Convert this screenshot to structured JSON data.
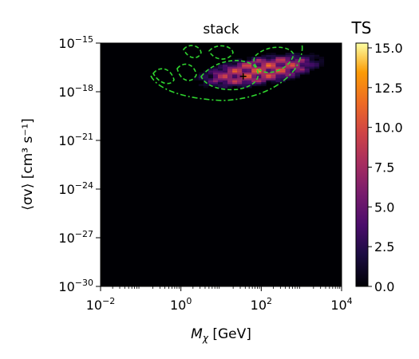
{
  "chart_data": {
    "type": "heatmap",
    "title": "stack",
    "xlabel": "M",
    "xlabel_sub": "χ",
    "xlabel_unit": " [GeV]",
    "ylabel": "⟨σv⟩ [cm³ s⁻¹]",
    "x_scale": "log",
    "y_scale": "log",
    "x_log10_range": [
      -2,
      4
    ],
    "y_log10_range": [
      -30,
      -15
    ],
    "x_ticks": [
      {
        "base": "10",
        "exp": "−2"
      },
      {
        "base": "10",
        "exp": "0"
      },
      {
        "base": "10",
        "exp": "2"
      },
      {
        "base": "10",
        "exp": "4"
      }
    ],
    "y_ticks": [
      {
        "base": "10",
        "exp": "−30"
      },
      {
        "base": "10",
        "exp": "−27"
      },
      {
        "base": "10",
        "exp": "−24"
      },
      {
        "base": "10",
        "exp": "−21"
      },
      {
        "base": "10",
        "exp": "−18"
      },
      {
        "base": "10",
        "exp": "−15"
      }
    ],
    "colorbar": {
      "label": "TS",
      "colormap": "inferno",
      "range": [
        0,
        15.3
      ],
      "ticks": [
        "0.0",
        "2.5",
        "5.0",
        "7.5",
        "10.0",
        "12.5",
        "15.0"
      ]
    },
    "best_fit_marker": {
      "log10_x": 1.55,
      "log10_y": -17.05
    },
    "contours": [
      {
        "style": "dashed",
        "color": "#2fd42f"
      },
      {
        "style": "dash-dot",
        "color": "#2fd42f"
      }
    ],
    "grid": false,
    "background_value": 0
  }
}
